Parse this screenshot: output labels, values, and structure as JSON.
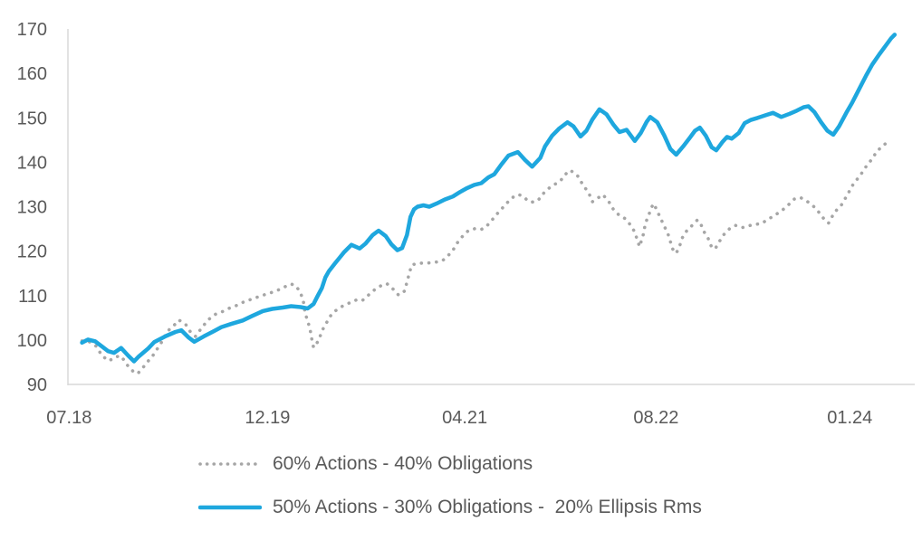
{
  "page": {
    "background": "#ffffff",
    "title": ""
  },
  "chart_data": {
    "type": "line",
    "title": "",
    "xlabel": "",
    "ylabel": "",
    "x_unit": "months since 2018-07 (approx, read from axis)",
    "xlim": [
      -0.1,
      71.6
    ],
    "ylim": [
      90,
      170
    ],
    "grid": false,
    "legend_position": "bottom-left",
    "axis_color": "#d9d9d9",
    "label_color": "#595959",
    "y_ticks": [
      90,
      100,
      110,
      120,
      130,
      140,
      150,
      160,
      170
    ],
    "x_ticks": [
      {
        "label": "07.18",
        "t": 0
      },
      {
        "label": "12.19",
        "t": 16.8
      },
      {
        "label": "04.21",
        "t": 33.5
      },
      {
        "label": "08.22",
        "t": 49.7
      },
      {
        "label": "01.24",
        "t": 66.1
      }
    ],
    "series": [
      {
        "name": "60% Actions - 40% Obligations",
        "color": "#a6a6a6",
        "line_style": "dotted",
        "points": [
          [
            1.1,
            99.8
          ],
          [
            1.7,
            99.6
          ],
          [
            2.3,
            98.6
          ],
          [
            2.8,
            96.4
          ],
          [
            3.4,
            95.3
          ],
          [
            3.9,
            96.2
          ],
          [
            4.4,
            96.4
          ],
          [
            5.0,
            94.1
          ],
          [
            5.4,
            93.0
          ],
          [
            5.8,
            92.4
          ],
          [
            6.2,
            93.6
          ],
          [
            6.6,
            95.0
          ],
          [
            7.0,
            96.1
          ],
          [
            7.4,
            97.8
          ],
          [
            7.7,
            98.8
          ],
          [
            8.0,
            100.5
          ],
          [
            8.5,
            102.4
          ],
          [
            9.0,
            103.6
          ],
          [
            9.3,
            104.5
          ],
          [
            9.9,
            103.4
          ],
          [
            10.3,
            101.7
          ],
          [
            10.7,
            100.8
          ],
          [
            11.3,
            103.0
          ],
          [
            11.8,
            104.6
          ],
          [
            12.4,
            105.8
          ],
          [
            13.0,
            106.4
          ],
          [
            13.6,
            107.2
          ],
          [
            14.2,
            107.8
          ],
          [
            14.9,
            108.7
          ],
          [
            15.6,
            109.3
          ],
          [
            16.2,
            109.9
          ],
          [
            16.8,
            110.4
          ],
          [
            17.5,
            111.0
          ],
          [
            18.0,
            111.6
          ],
          [
            18.5,
            112.3
          ],
          [
            18.8,
            112.6
          ],
          [
            19.2,
            112.2
          ],
          [
            19.5,
            111.0
          ],
          [
            19.8,
            109.3
          ],
          [
            20.0,
            105.9
          ],
          [
            20.2,
            104.3
          ],
          [
            20.4,
            102.5
          ],
          [
            20.5,
            100.9
          ],
          [
            20.7,
            98.3
          ],
          [
            21.1,
            99.8
          ],
          [
            21.3,
            101.2
          ],
          [
            21.5,
            102.5
          ],
          [
            21.8,
            103.9
          ],
          [
            22.1,
            105.3
          ],
          [
            22.4,
            106.3
          ],
          [
            22.8,
            107.0
          ],
          [
            23.2,
            107.7
          ],
          [
            23.7,
            108.3
          ],
          [
            24.3,
            109.0
          ],
          [
            24.8,
            108.8
          ],
          [
            25.3,
            110.0
          ],
          [
            25.9,
            111.4
          ],
          [
            26.4,
            112.2
          ],
          [
            26.9,
            112.7
          ],
          [
            27.5,
            111.3
          ],
          [
            27.9,
            110.1
          ],
          [
            28.4,
            111.0
          ],
          [
            28.7,
            114.0
          ],
          [
            29.0,
            116.9
          ],
          [
            29.6,
            117.3
          ],
          [
            30.3,
            117.3
          ],
          [
            31.0,
            117.5
          ],
          [
            31.6,
            117.8
          ],
          [
            32.1,
            119.0
          ],
          [
            32.5,
            120.2
          ],
          [
            33.0,
            122.4
          ],
          [
            33.3,
            123.3
          ],
          [
            33.8,
            124.6
          ],
          [
            34.4,
            125.1
          ],
          [
            34.9,
            124.9
          ],
          [
            35.3,
            125.4
          ],
          [
            35.6,
            126.4
          ],
          [
            35.9,
            127.3
          ],
          [
            36.2,
            128.3
          ],
          [
            36.6,
            129.4
          ],
          [
            36.9,
            130.4
          ],
          [
            37.3,
            131.4
          ],
          [
            37.7,
            132.4
          ],
          [
            38.1,
            132.7
          ],
          [
            38.5,
            132.2
          ],
          [
            38.8,
            131.4
          ],
          [
            39.1,
            131.0
          ],
          [
            39.6,
            131.2
          ],
          [
            39.9,
            132.0
          ],
          [
            40.2,
            133.1
          ],
          [
            40.6,
            134.1
          ],
          [
            41.0,
            134.9
          ],
          [
            41.4,
            135.4
          ],
          [
            41.8,
            136.4
          ],
          [
            42.1,
            137.5
          ],
          [
            42.4,
            138.2
          ],
          [
            42.8,
            137.6
          ],
          [
            43.1,
            136.8
          ],
          [
            43.5,
            134.9
          ],
          [
            44.0,
            133.1
          ],
          [
            44.3,
            131.1
          ],
          [
            44.8,
            132.0
          ],
          [
            45.2,
            132.7
          ],
          [
            45.7,
            131.1
          ],
          [
            46.1,
            129.3
          ],
          [
            46.6,
            128.0
          ],
          [
            47.1,
            127.3
          ],
          [
            47.5,
            126.0
          ],
          [
            47.9,
            124.3
          ],
          [
            48.1,
            122.6
          ],
          [
            48.3,
            121.0
          ],
          [
            48.6,
            123.6
          ],
          [
            48.8,
            126.3
          ],
          [
            49.1,
            128.3
          ],
          [
            49.3,
            129.8
          ],
          [
            49.5,
            130.7
          ],
          [
            49.8,
            129.0
          ],
          [
            50.1,
            127.3
          ],
          [
            50.4,
            125.6
          ],
          [
            50.7,
            123.9
          ],
          [
            50.9,
            122.2
          ],
          [
            51.1,
            120.5
          ],
          [
            51.4,
            119.5
          ],
          [
            51.7,
            121.2
          ],
          [
            51.9,
            122.9
          ],
          [
            52.2,
            124.3
          ],
          [
            52.6,
            125.3
          ],
          [
            52.9,
            126.3
          ],
          [
            53.2,
            127.0
          ],
          [
            53.5,
            126.0
          ],
          [
            53.7,
            124.6
          ],
          [
            54.1,
            122.9
          ],
          [
            54.4,
            120.9
          ],
          [
            54.7,
            120.5
          ],
          [
            55.0,
            121.9
          ],
          [
            55.4,
            123.6
          ],
          [
            55.9,
            125.0
          ],
          [
            56.4,
            125.8
          ],
          [
            57.0,
            125.3
          ],
          [
            57.4,
            125.6
          ],
          [
            58.0,
            126.0
          ],
          [
            58.6,
            126.2
          ],
          [
            59.1,
            127.0
          ],
          [
            59.7,
            128.0
          ],
          [
            60.3,
            129.0
          ],
          [
            60.9,
            130.4
          ],
          [
            61.4,
            131.7
          ],
          [
            61.9,
            132.1
          ],
          [
            62.6,
            131.0
          ],
          [
            63.2,
            129.7
          ],
          [
            63.9,
            127.3
          ],
          [
            64.3,
            126.3
          ],
          [
            64.8,
            128.7
          ],
          [
            65.4,
            130.4
          ],
          [
            65.9,
            132.7
          ],
          [
            66.4,
            135.1
          ],
          [
            67.0,
            137.1
          ],
          [
            67.5,
            139.1
          ],
          [
            68.0,
            140.8
          ],
          [
            68.4,
            142.5
          ],
          [
            69.0,
            143.9
          ],
          [
            69.4,
            144.8
          ]
        ]
      },
      {
        "name": "50% Actions - 30% Obligations -  20% Ellipsis Rms",
        "color": "#1ea7de",
        "line_style": "solid",
        "points": [
          [
            1.1,
            99.4
          ],
          [
            1.6,
            100.1
          ],
          [
            2.2,
            99.7
          ],
          [
            2.8,
            98.5
          ],
          [
            3.3,
            97.5
          ],
          [
            3.8,
            97.1
          ],
          [
            4.4,
            98.2
          ],
          [
            5.0,
            96.5
          ],
          [
            5.5,
            95.2
          ],
          [
            5.9,
            96.3
          ],
          [
            6.7,
            98.1
          ],
          [
            7.2,
            99.5
          ],
          [
            8.2,
            100.9
          ],
          [
            9.0,
            101.8
          ],
          [
            9.5,
            102.2
          ],
          [
            10.1,
            100.6
          ],
          [
            10.6,
            99.6
          ],
          [
            11.4,
            100.8
          ],
          [
            12.2,
            101.9
          ],
          [
            12.9,
            102.9
          ],
          [
            13.7,
            103.6
          ],
          [
            14.7,
            104.4
          ],
          [
            15.5,
            105.4
          ],
          [
            16.4,
            106.5
          ],
          [
            17.2,
            107.0
          ],
          [
            18.1,
            107.3
          ],
          [
            18.8,
            107.6
          ],
          [
            19.6,
            107.4
          ],
          [
            20.2,
            107.1
          ],
          [
            20.7,
            108.1
          ],
          [
            21.0,
            109.7
          ],
          [
            21.4,
            111.7
          ],
          [
            21.7,
            114.1
          ],
          [
            22.0,
            115.5
          ],
          [
            22.5,
            117.2
          ],
          [
            22.9,
            118.5
          ],
          [
            23.3,
            119.8
          ],
          [
            23.9,
            121.4
          ],
          [
            24.6,
            120.6
          ],
          [
            25.1,
            121.7
          ],
          [
            25.7,
            123.6
          ],
          [
            26.2,
            124.6
          ],
          [
            26.8,
            123.4
          ],
          [
            27.3,
            121.5
          ],
          [
            27.8,
            120.2
          ],
          [
            28.2,
            120.7
          ],
          [
            28.6,
            123.6
          ],
          [
            28.9,
            127.7
          ],
          [
            29.2,
            129.4
          ],
          [
            29.5,
            130.0
          ],
          [
            30.0,
            130.3
          ],
          [
            30.5,
            130.0
          ],
          [
            31.1,
            130.7
          ],
          [
            31.8,
            131.6
          ],
          [
            32.5,
            132.3
          ],
          [
            33.1,
            133.3
          ],
          [
            33.7,
            134.2
          ],
          [
            34.3,
            134.9
          ],
          [
            34.9,
            135.3
          ],
          [
            35.5,
            136.6
          ],
          [
            36.0,
            137.3
          ],
          [
            36.6,
            139.5
          ],
          [
            37.2,
            141.5
          ],
          [
            38.0,
            142.3
          ],
          [
            38.6,
            140.5
          ],
          [
            39.2,
            139.0
          ],
          [
            39.9,
            141.0
          ],
          [
            40.3,
            143.6
          ],
          [
            40.9,
            146.0
          ],
          [
            41.5,
            147.6
          ],
          [
            42.2,
            149.0
          ],
          [
            42.7,
            148.1
          ],
          [
            43.3,
            145.8
          ],
          [
            43.8,
            147.1
          ],
          [
            44.3,
            149.6
          ],
          [
            44.9,
            151.9
          ],
          [
            45.5,
            150.8
          ],
          [
            46.1,
            148.4
          ],
          [
            46.6,
            146.8
          ],
          [
            47.2,
            147.3
          ],
          [
            47.9,
            144.8
          ],
          [
            48.4,
            146.6
          ],
          [
            48.9,
            149.1
          ],
          [
            49.2,
            150.2
          ],
          [
            49.8,
            149.0
          ],
          [
            50.4,
            146.0
          ],
          [
            50.9,
            143.0
          ],
          [
            51.4,
            141.7
          ],
          [
            52.0,
            143.6
          ],
          [
            52.5,
            145.3
          ],
          [
            53.0,
            147.1
          ],
          [
            53.4,
            147.8
          ],
          [
            53.9,
            146.0
          ],
          [
            54.4,
            143.4
          ],
          [
            54.8,
            142.7
          ],
          [
            55.3,
            144.5
          ],
          [
            55.7,
            145.7
          ],
          [
            56.1,
            145.3
          ],
          [
            56.7,
            146.6
          ],
          [
            57.2,
            148.8
          ],
          [
            57.7,
            149.5
          ],
          [
            58.3,
            150.0
          ],
          [
            59.0,
            150.6
          ],
          [
            59.6,
            151.1
          ],
          [
            60.3,
            150.2
          ],
          [
            61.0,
            150.9
          ],
          [
            61.6,
            151.6
          ],
          [
            62.2,
            152.4
          ],
          [
            62.6,
            152.6
          ],
          [
            63.1,
            151.3
          ],
          [
            63.7,
            148.9
          ],
          [
            64.2,
            147.1
          ],
          [
            64.7,
            146.2
          ],
          [
            65.2,
            148.1
          ],
          [
            65.8,
            151.1
          ],
          [
            66.3,
            153.4
          ],
          [
            66.9,
            156.5
          ],
          [
            67.5,
            159.6
          ],
          [
            68.0,
            162.0
          ],
          [
            68.6,
            164.3
          ],
          [
            69.1,
            166.1
          ],
          [
            69.6,
            167.9
          ],
          [
            69.9,
            168.7
          ]
        ]
      }
    ]
  },
  "legend": {
    "items": [
      {
        "label": "60% Actions - 40% Obligations"
      },
      {
        "label": "50% Actions - 30% Obligations -  20% Ellipsis Rms"
      }
    ]
  }
}
